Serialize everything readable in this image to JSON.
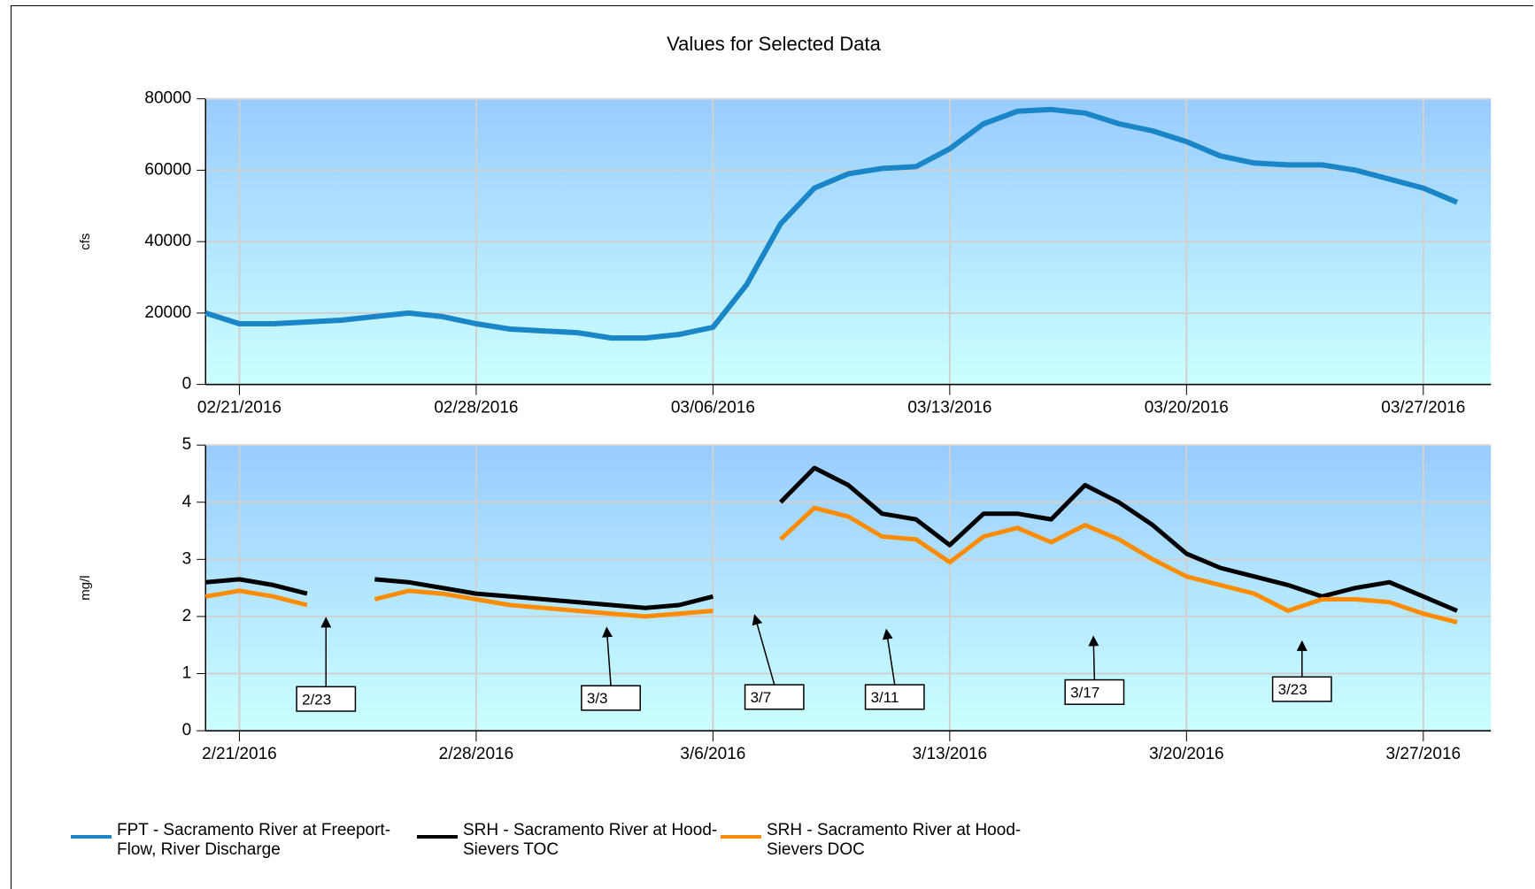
{
  "chart_data": [
    {
      "type": "line",
      "title": "Values for Selected Data",
      "ylabel": "cfs",
      "x": [
        "2016-02-20",
        "2016-02-21",
        "2016-02-22",
        "2016-02-23",
        "2016-02-24",
        "2016-02-25",
        "2016-02-26",
        "2016-02-27",
        "2016-02-28",
        "2016-02-29",
        "2016-03-01",
        "2016-03-02",
        "2016-03-03",
        "2016-03-04",
        "2016-03-05",
        "2016-03-06",
        "2016-03-07",
        "2016-03-08",
        "2016-03-09",
        "2016-03-10",
        "2016-03-11",
        "2016-03-12",
        "2016-03-13",
        "2016-03-14",
        "2016-03-15",
        "2016-03-16",
        "2016-03-17",
        "2016-03-18",
        "2016-03-19",
        "2016-03-20",
        "2016-03-21",
        "2016-03-22",
        "2016-03-23",
        "2016-03-24",
        "2016-03-25",
        "2016-03-26",
        "2016-03-27",
        "2016-03-28"
      ],
      "series": [
        {
          "name": "FPT - Sacramento River at Freeport-Flow, River Discharge",
          "color": "#1a86c8",
          "values": [
            20000,
            17000,
            17000,
            17500,
            18000,
            19000,
            20000,
            19000,
            17000,
            15500,
            15000,
            14500,
            13000,
            13000,
            14000,
            16000,
            28000,
            45000,
            55000,
            59000,
            60500,
            61000,
            66000,
            73000,
            76500,
            77000,
            76000,
            73000,
            71000,
            68000,
            64000,
            62000,
            61500,
            61500,
            60000,
            57500,
            55000,
            51000
          ]
        }
      ],
      "xlim": [
        "2016-02-20",
        "2016-03-29"
      ],
      "xticks": [
        {
          "value": "2016-02-21",
          "label": "02/21/2016"
        },
        {
          "value": "2016-02-28",
          "label": "02/28/2016"
        },
        {
          "value": "2016-03-06",
          "label": "03/06/2016"
        },
        {
          "value": "2016-03-13",
          "label": "03/13/2016"
        },
        {
          "value": "2016-03-20",
          "label": "03/20/2016"
        },
        {
          "value": "2016-03-27",
          "label": "03/27/2016"
        }
      ],
      "ylim": [
        0,
        80000
      ],
      "yticks": [
        0,
        20000,
        40000,
        60000,
        80000
      ],
      "grid": true
    },
    {
      "type": "line",
      "ylabel": "mg/l",
      "x": [
        "2016-02-20",
        "2016-02-21",
        "2016-02-22",
        "2016-02-23",
        "2016-02-24",
        "2016-02-25",
        "2016-02-26",
        "2016-02-27",
        "2016-02-28",
        "2016-02-29",
        "2016-03-01",
        "2016-03-02",
        "2016-03-03",
        "2016-03-04",
        "2016-03-05",
        "2016-03-06",
        "2016-03-07",
        "2016-03-08",
        "2016-03-09",
        "2016-03-10",
        "2016-03-11",
        "2016-03-12",
        "2016-03-13",
        "2016-03-14",
        "2016-03-15",
        "2016-03-16",
        "2016-03-17",
        "2016-03-18",
        "2016-03-19",
        "2016-03-20",
        "2016-03-21",
        "2016-03-22",
        "2016-03-23",
        "2016-03-24",
        "2016-03-25",
        "2016-03-26",
        "2016-03-27",
        "2016-03-28"
      ],
      "series": [
        {
          "name": "SRH - Sacramento River at Hood-Sievers TOC",
          "color": "#000000",
          "values": [
            2.6,
            2.65,
            2.55,
            2.4,
            null,
            2.65,
            2.6,
            2.5,
            2.4,
            2.35,
            2.3,
            2.25,
            2.2,
            2.15,
            2.2,
            2.35,
            null,
            4.0,
            4.6,
            4.3,
            3.8,
            3.7,
            3.25,
            3.8,
            3.8,
            3.7,
            4.3,
            4.0,
            3.6,
            3.1,
            2.85,
            2.7,
            2.55,
            2.35,
            2.5,
            2.6,
            2.35,
            2.1
          ]
        },
        {
          "name": "SRH - Sacramento River at Hood-Sievers DOC",
          "color": "#ff8c00",
          "values": [
            2.35,
            2.45,
            2.35,
            2.2,
            null,
            2.3,
            2.45,
            2.4,
            2.3,
            2.2,
            2.15,
            2.1,
            2.05,
            2.0,
            2.05,
            2.1,
            null,
            3.35,
            3.9,
            3.75,
            3.4,
            3.35,
            2.95,
            3.4,
            3.55,
            3.3,
            3.6,
            3.35,
            3.0,
            2.7,
            2.55,
            2.4,
            2.1,
            2.3,
            2.3,
            2.25,
            2.05,
            1.9
          ]
        }
      ],
      "xlim": [
        "2016-02-20",
        "2016-03-29"
      ],
      "xticks": [
        {
          "value": "2016-02-21",
          "label": "2/21/2016"
        },
        {
          "value": "2016-02-28",
          "label": "2/28/2016"
        },
        {
          "value": "2016-03-06",
          "label": "3/6/2016"
        },
        {
          "value": "2016-03-13",
          "label": "3/13/2016"
        },
        {
          "value": "2016-03-20",
          "label": "3/20/2016"
        },
        {
          "value": "2016-03-27",
          "label": "3/27/2016"
        }
      ],
      "ylim": [
        0,
        5
      ],
      "yticks": [
        0,
        1,
        2,
        3,
        4,
        5
      ],
      "grid": true,
      "annotations": [
        "2/23",
        "3/3",
        "3/7",
        "3/11",
        "3/17",
        "3/23"
      ]
    }
  ]
}
